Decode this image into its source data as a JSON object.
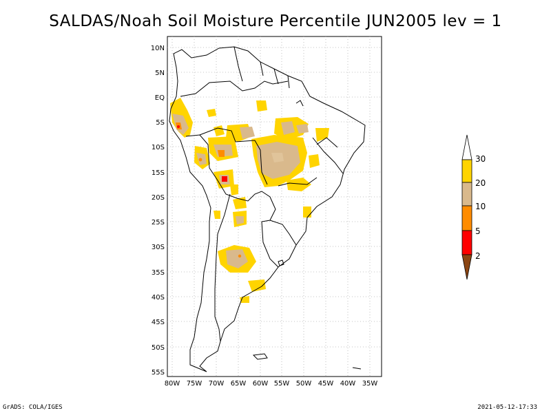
{
  "title": "SALDAS/Noah Soil Moisture Percentile JUN2005 lev = 1",
  "footer_left": "GrADS: COLA/IGES",
  "footer_right": "2021-05-12-17:33",
  "map": {
    "lat_ticks": [
      "10N",
      "5N",
      "EQ",
      "5S",
      "10S",
      "15S",
      "20S",
      "25S",
      "30S",
      "35S",
      "40S",
      "45S",
      "50S",
      "55S"
    ],
    "lon_ticks": [
      "80W",
      "75W",
      "70W",
      "65W",
      "60W",
      "55W",
      "50W",
      "45W",
      "40W",
      "35W"
    ],
    "lat_range": [
      -56,
      12
    ],
    "lon_range": [
      -81,
      -33
    ],
    "grid": true,
    "coastline_color": "#000000",
    "grid_color": "#b0b0b0"
  },
  "legend": {
    "placement": "right",
    "labels": [
      "30",
      "20",
      "10",
      "5",
      "2"
    ],
    "colors": {
      "white": "#ffffff",
      "yellow": "#ffd400",
      "tan": "#d9b98c",
      "orange": "#ff8c00",
      "red": "#ff0000",
      "brown": "#8b4513"
    }
  }
}
